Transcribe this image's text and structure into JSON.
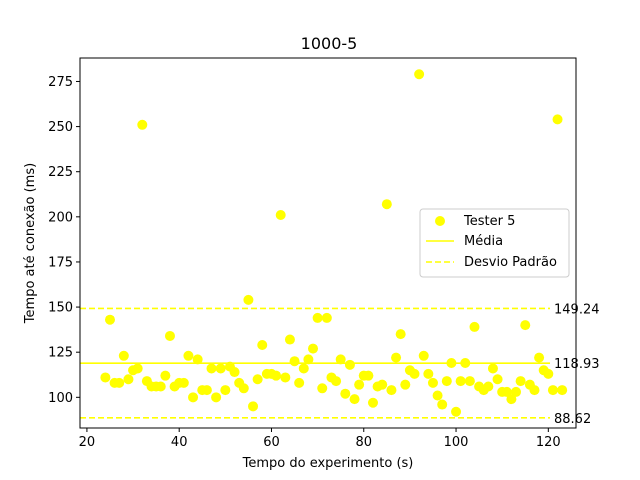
{
  "chart_data": {
    "type": "scatter",
    "title": "1000-5",
    "xlabel": "Tempo do experimento (s)",
    "ylabel": "Tempo até conexão (ms)",
    "xlim": [
      18.5,
      126
    ],
    "ylim": [
      83,
      288
    ],
    "xticks": [
      20,
      40,
      60,
      80,
      100,
      120
    ],
    "yticks": [
      100,
      125,
      150,
      175,
      200,
      225,
      250,
      275
    ],
    "legend_position": "center-right",
    "colors": {
      "points": "#ffff00",
      "mean": "#ffff00",
      "std": "#ffff00"
    },
    "series": [
      {
        "name": "Tester 5",
        "x": [
          24,
          25,
          26,
          27,
          28,
          29,
          30,
          31,
          32,
          33,
          34,
          35,
          36,
          37,
          38,
          39,
          40,
          41,
          42,
          43,
          44,
          45,
          46,
          47,
          48,
          49,
          50,
          51,
          52,
          53,
          54,
          55,
          56,
          57,
          58,
          59,
          60,
          61,
          62,
          63,
          64,
          65,
          66,
          67,
          68,
          69,
          70,
          71,
          72,
          73,
          74,
          75,
          76,
          77,
          78,
          79,
          80,
          81,
          82,
          83,
          84,
          85,
          86,
          87,
          88,
          89,
          90,
          91,
          92,
          93,
          94,
          95,
          96,
          97,
          98,
          99,
          100,
          101,
          102,
          103,
          104,
          105,
          106,
          107,
          108,
          109,
          110,
          111,
          112,
          113,
          114,
          115,
          116,
          117,
          118,
          119,
          120,
          121,
          122,
          123
        ],
        "y": [
          111,
          143,
          108,
          108,
          123,
          110,
          115,
          116,
          251,
          109,
          106,
          106,
          106,
          112,
          134,
          106,
          108,
          108,
          123,
          100,
          121,
          104,
          104,
          116,
          100,
          116,
          104,
          117,
          114,
          108,
          105,
          154,
          95,
          110,
          129,
          113,
          113,
          112,
          201,
          111,
          132,
          120,
          108,
          116,
          121,
          127,
          144,
          105,
          144,
          111,
          109,
          121,
          102,
          118,
          99,
          107,
          112,
          112,
          97,
          106,
          107,
          207,
          104,
          122,
          135,
          107,
          115,
          113,
          279,
          123,
          113,
          108,
          101,
          96,
          109,
          119,
          92,
          109,
          119,
          109,
          139,
          106,
          104,
          106,
          116,
          110,
          103,
          103,
          99,
          103,
          109,
          140,
          107,
          104,
          122,
          115,
          113,
          104,
          254,
          104
        ]
      }
    ],
    "reference_lines": [
      {
        "name": "Média",
        "value": 118.93,
        "label": "118.93",
        "style": "solid"
      },
      {
        "name": "Desvio Padrão",
        "value": 149.24,
        "label": "149.24",
        "style": "dashed"
      },
      {
        "name": "Desvio Padrão",
        "value": 88.62,
        "label": "88.62",
        "style": "dashed"
      }
    ],
    "legend": [
      "Tester 5",
      "Média",
      "Desvio Padrão"
    ]
  }
}
